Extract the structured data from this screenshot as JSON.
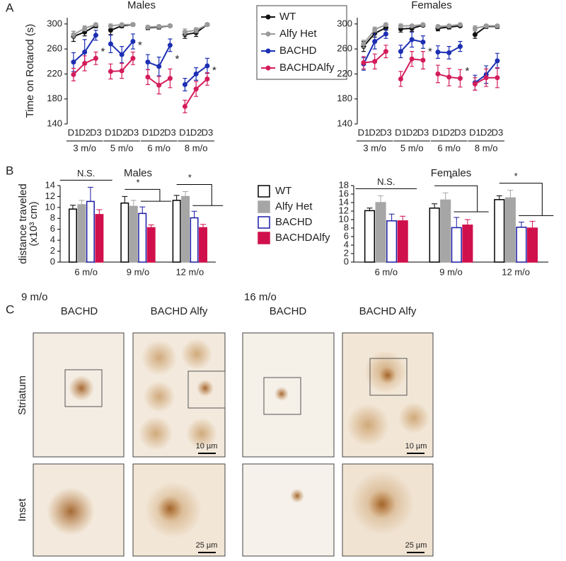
{
  "panel_labels": [
    "A",
    "B"
  ],
  "chart_data": [
    {
      "type": "line",
      "title": "Males",
      "ylabel": "Time on Rotarod (s)",
      "categories": [
        "D1",
        "D2",
        "D3",
        "D1",
        "D2",
        "D3",
        "D1",
        "D2",
        "D3",
        "D1",
        "D2",
        "D3"
      ],
      "groups": [
        "3 m/o",
        "5 m/o",
        "6 m/o",
        "8 m/o"
      ],
      "ylim": [
        140,
        310
      ],
      "yticks": [
        140,
        180,
        220,
        260,
        300
      ],
      "legend": "right",
      "series": [
        {
          "name": "WT",
          "color": "#111111",
          "values": [
            280,
            287,
            297,
            290,
            297,
            299,
            294,
            295,
            297,
            283,
            286,
            299
          ],
          "errors": [
            8,
            6,
            3,
            7,
            3,
            2,
            3,
            3,
            2,
            6,
            6,
            2
          ]
        },
        {
          "name": "Alfy Het",
          "color": "#9a9a9a",
          "values": [
            283,
            293,
            299,
            297,
            299,
            299,
            295,
            296,
            297,
            287,
            290,
            299
          ],
          "errors": [
            5,
            4,
            2,
            3,
            2,
            1,
            2,
            2,
            2,
            5,
            4,
            1
          ]
        },
        {
          "name": "BACHD",
          "color": "#1c2fb3",
          "values": [
            239,
            255,
            282,
            268,
            251,
            272,
            239,
            232,
            266,
            203,
            220,
            233
          ],
          "errors": [
            15,
            20,
            8,
            14,
            13,
            12,
            12,
            15,
            10,
            10,
            10,
            12
          ]
        },
        {
          "name": "BACHDAlfy",
          "color": "#d41c5c",
          "values": [
            219,
            237,
            245,
            224,
            225,
            245,
            215,
            202,
            213,
            168,
            196,
            212
          ],
          "errors": [
            10,
            12,
            10,
            12,
            12,
            10,
            12,
            14,
            15,
            10,
            12,
            10
          ]
        }
      ],
      "annotations": [
        {
          "text": "*",
          "group": 0,
          "y": 255
        },
        {
          "text": "*",
          "group": 1,
          "y": 265
        },
        {
          "text": "*",
          "group": 2,
          "y": 243
        },
        {
          "text": "*",
          "group": 3,
          "y": 225
        }
      ]
    },
    {
      "type": "line",
      "title": "Females",
      "categories": [
        "D1",
        "D2",
        "D3",
        "D1",
        "D2",
        "D3",
        "D1",
        "D2",
        "D3",
        "D1",
        "D2",
        "D3"
      ],
      "groups": [
        "3 m/o",
        "5 m/o",
        "6 m/o",
        "8 m/o"
      ],
      "ylim": [
        140,
        310
      ],
      "yticks": [
        140,
        180,
        220,
        260,
        300
      ],
      "series": [
        {
          "name": "WT",
          "color": "#111111",
          "values": [
            264,
            285,
            294,
            292,
            293,
            298,
            293,
            295,
            297,
            283,
            296,
            296
          ],
          "errors": [
            8,
            6,
            4,
            5,
            5,
            2,
            4,
            3,
            2,
            6,
            3,
            3
          ]
        },
        {
          "name": "Alfy Het",
          "color": "#9a9a9a",
          "values": [
            268,
            291,
            299,
            297,
            297,
            299,
            296,
            297,
            299,
            293,
            297,
            297
          ],
          "errors": [
            6,
            4,
            2,
            3,
            2,
            1,
            2,
            2,
            1,
            4,
            2,
            2
          ]
        },
        {
          "name": "BACHD",
          "color": "#1c2fb3",
          "values": [
            236,
            272,
            284,
            256,
            275,
            271,
            255,
            254,
            264,
            206,
            219,
            241
          ],
          "errors": [
            10,
            12,
            7,
            10,
            12,
            10,
            10,
            10,
            8,
            12,
            14,
            12
          ]
        },
        {
          "name": "BACHDAlfy",
          "color": "#d41c5c",
          "values": [
            238,
            240,
            256,
            212,
            244,
            242,
            220,
            215,
            213,
            204,
            214,
            214
          ],
          "errors": [
            10,
            12,
            10,
            12,
            12,
            14,
            14,
            14,
            14,
            10,
            14,
            16
          ]
        }
      ],
      "annotations": [
        {
          "text": "*",
          "group": 1,
          "y": 255
        },
        {
          "text": "*",
          "group": 2,
          "y": 224
        }
      ]
    },
    {
      "type": "bar",
      "title": "Males",
      "ylabel": [
        "distance traveled",
        "(x10³ cm)"
      ],
      "categories": [
        "6 m/o",
        "9 m/o",
        "12 m/o"
      ],
      "ylim": [
        0,
        14
      ],
      "yticks": [
        0,
        2,
        4,
        6,
        8,
        10,
        12,
        14
      ],
      "legend": "right",
      "series": [
        {
          "name": "WT",
          "color": "#000000",
          "fill": "#ffffff",
          "values": [
            9.7,
            10.8,
            11.3
          ],
          "errors": [
            0.7,
            1.2,
            0.9
          ]
        },
        {
          "name": "Alfy Het",
          "color": "#a6a6a6",
          "fill": "#a6a6a6",
          "values": [
            10.5,
            10.2,
            12.0
          ],
          "errors": [
            0.8,
            1.1,
            0.9
          ]
        },
        {
          "name": "BACHD",
          "color": "#1a1aa6",
          "fill": "#ffffff",
          "values": [
            11.1,
            8.9,
            8.1
          ],
          "errors": [
            2.6,
            1.2,
            1.2
          ]
        },
        {
          "name": "BACHDAlfy",
          "color": "#d0104c",
          "fill": "#d0104c",
          "values": [
            8.7,
            6.3,
            6.3
          ],
          "errors": [
            0.9,
            0.5,
            0.6
          ]
        }
      ],
      "annotations": [
        {
          "text": "N.S.",
          "category": 0
        },
        {
          "text": "*",
          "category": 1
        },
        {
          "text": "*",
          "category": 2
        }
      ]
    },
    {
      "type": "bar",
      "title": "Females",
      "categories": [
        "6 m/o",
        "9 m/o",
        "12 m/o"
      ],
      "ylim": [
        0,
        18
      ],
      "yticks": [
        0,
        2,
        4,
        6,
        8,
        10,
        12,
        14,
        16,
        18
      ],
      "series": [
        {
          "name": "WT",
          "color": "#000000",
          "fill": "#ffffff",
          "values": [
            12.1,
            12.7,
            14.7
          ],
          "errors": [
            0.6,
            1.0,
            0.9
          ]
        },
        {
          "name": "Alfy Het",
          "color": "#a6a6a6",
          "fill": "#a6a6a6",
          "values": [
            14.0,
            14.6,
            15.1
          ],
          "errors": [
            1.6,
            1.7,
            1.8
          ]
        },
        {
          "name": "BACHD",
          "color": "#1a1aa6",
          "fill": "#ffffff",
          "values": [
            9.7,
            8.1,
            8.2
          ],
          "errors": [
            1.6,
            2.4,
            1.2
          ]
        },
        {
          "name": "BACHDAlfy",
          "color": "#d0104c",
          "fill": "#d0104c",
          "values": [
            9.7,
            8.7,
            8.0
          ],
          "errors": [
            1.1,
            1.3,
            1.6
          ]
        }
      ],
      "annotations": [
        {
          "text": "N.S.",
          "category": 0
        },
        {
          "text": "*",
          "category": 1
        },
        {
          "text": "*",
          "category": 2
        }
      ]
    }
  ],
  "panel_c": {
    "label": "C",
    "ages": [
      "9 m/o",
      "16 m/o"
    ],
    "columns": [
      "BACHD",
      "BACHD Alfy",
      "BACHD",
      "BACHD Alfy"
    ],
    "rows": [
      "Striatum",
      "Inset"
    ],
    "scale_bars": [
      "10 µm",
      "10 µm",
      "25 µm",
      "25 µm"
    ]
  }
}
